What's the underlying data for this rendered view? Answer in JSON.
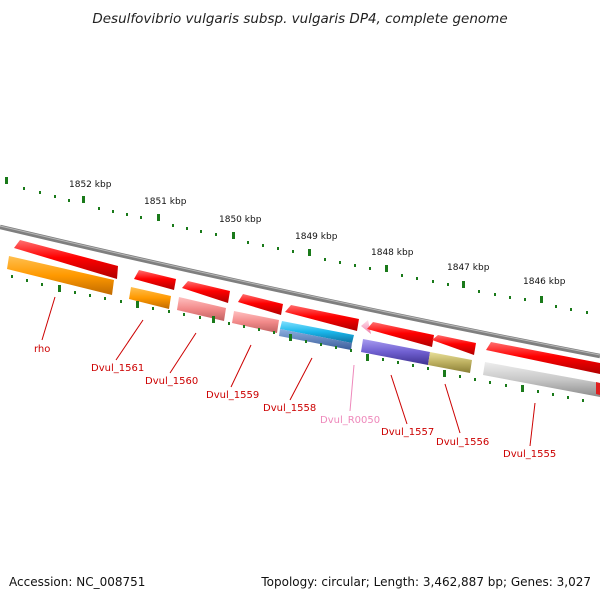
{
  "title": "Desulfovibrio vulgaris subsp. vulgaris DP4, complete genome",
  "footer": {
    "accession": "Accession: NC_008751",
    "summary": "Topology: circular; Length: 3,462,887 bp; Genes: 3,027"
  },
  "kbp_labels": [
    "1852 kbp",
    "1851 kbp",
    "1850 kbp",
    "1849 kbp",
    "1848 kbp",
    "1847 kbp",
    "1846 kbp"
  ],
  "genes": [
    {
      "label": "rho",
      "color": "#cc0000"
    },
    {
      "label": "Dvul_1561",
      "color": "#cc0000"
    },
    {
      "label": "Dvul_1560",
      "color": "#cc0000"
    },
    {
      "label": "Dvul_1559",
      "color": "#cc0000"
    },
    {
      "label": "Dvul_1558",
      "color": "#cc0000"
    },
    {
      "label": "Dvul_R0050",
      "color": "#ee88bb"
    },
    {
      "label": "Dvul_1557",
      "color": "#cc0000"
    },
    {
      "label": "Dvul_1556",
      "color": "#cc0000"
    },
    {
      "label": "Dvul_1555",
      "color": "#cc0000"
    }
  ],
  "colors": {
    "backbone": "#808080",
    "cds": "#ff0000",
    "tick": "#1a7a1a"
  }
}
